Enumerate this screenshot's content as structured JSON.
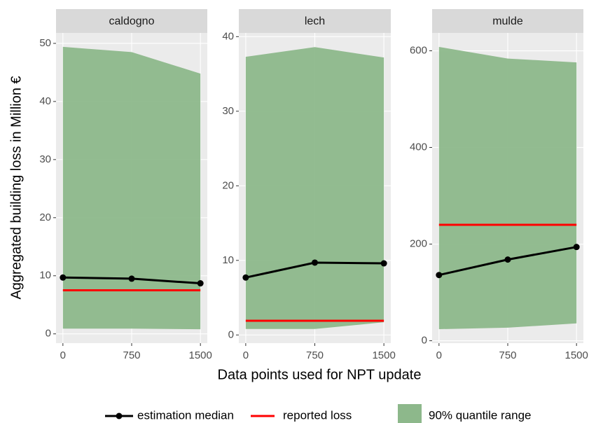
{
  "xlabel": "Data points used for NPT update",
  "ylabel": "Aggregated building loss in Million €",
  "legend": [
    {
      "name": "estimation median",
      "color": "#000000"
    },
    {
      "name": "reported loss",
      "color": "#ff0000"
    },
    {
      "name": "90% quantile range",
      "color": "#8db88b"
    }
  ],
  "chart_data": [
    {
      "type": "line",
      "title": "caldogno",
      "x": [
        0,
        750,
        1500
      ],
      "median": [
        9.7,
        9.5,
        8.7
      ],
      "reported": [
        7.5,
        7.5,
        7.5
      ],
      "lower": [
        0.9,
        0.9,
        0.8
      ],
      "upper": [
        49.4,
        48.5,
        44.8
      ],
      "xlim": [
        -75,
        1575
      ],
      "xticks": [
        0,
        750,
        1500
      ],
      "ylim": [
        -1.6,
        51.8
      ],
      "yticks": [
        0,
        10,
        20,
        30,
        40,
        50
      ],
      "grid": true
    },
    {
      "type": "line",
      "title": "lech",
      "x": [
        0,
        750,
        1500
      ],
      "median": [
        7.7,
        9.7,
        9.6
      ],
      "reported": [
        1.9,
        1.9,
        1.9
      ],
      "lower": [
        0.8,
        0.8,
        1.7
      ],
      "upper": [
        37.3,
        38.6,
        37.2
      ],
      "xlim": [
        -75,
        1575
      ],
      "xticks": [
        0,
        750,
        1500
      ],
      "ylim": [
        -1.1,
        40.5
      ],
      "yticks": [
        0,
        10,
        20,
        30,
        40
      ],
      "grid": true
    },
    {
      "type": "line",
      "title": "mulde",
      "x": [
        0,
        750,
        1500
      ],
      "median": [
        136,
        168,
        194
      ],
      "reported": [
        240,
        240,
        240
      ],
      "lower": [
        24,
        27,
        36
      ],
      "upper": [
        608,
        584,
        576
      ],
      "xlim": [
        -75,
        1575
      ],
      "xticks": [
        0,
        750,
        1500
      ],
      "ylim": [
        -5,
        637
      ],
      "yticks": [
        0,
        200,
        400,
        600
      ],
      "grid": true
    }
  ]
}
